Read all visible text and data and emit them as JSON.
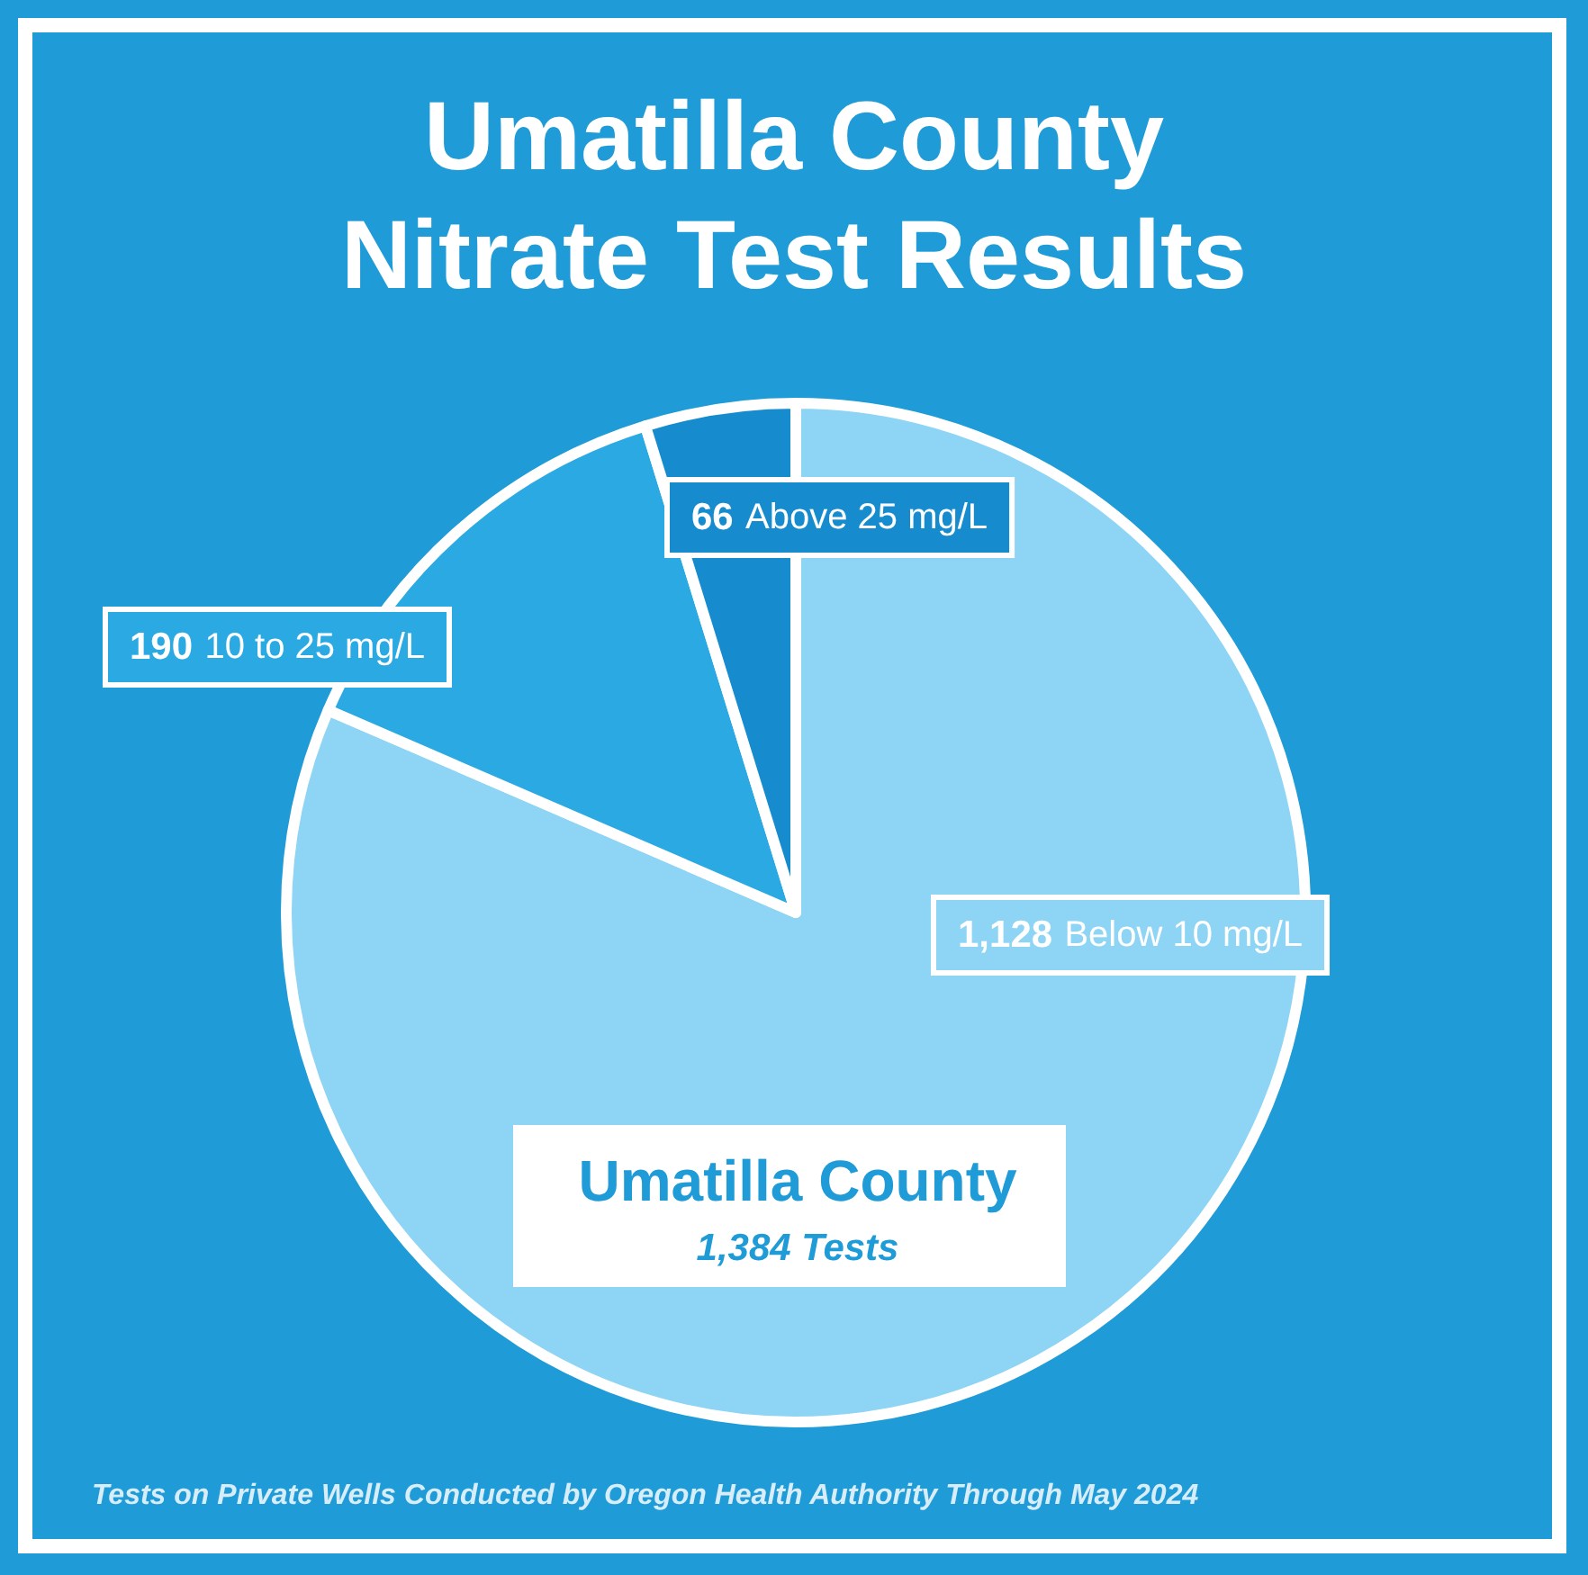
{
  "chart_data": {
    "type": "pie",
    "title": "Umatilla County\nNitrate Test Results",
    "categories": [
      "Below 10 mg/L",
      "10 to 25 mg/L",
      "Above 25 mg/L"
    ],
    "values": [
      1128,
      190,
      66
    ],
    "value_labels": [
      "1,128",
      "190",
      "66"
    ],
    "colors": [
      "#8dd4f5",
      "#2aa9e3",
      "#168ccf"
    ],
    "annotations": [
      "Umatilla County",
      "1,384 Tests",
      "Tests on Private Wells Conducted by Oregon Health Authority Through May 2024"
    ],
    "legend": false
  }
}
